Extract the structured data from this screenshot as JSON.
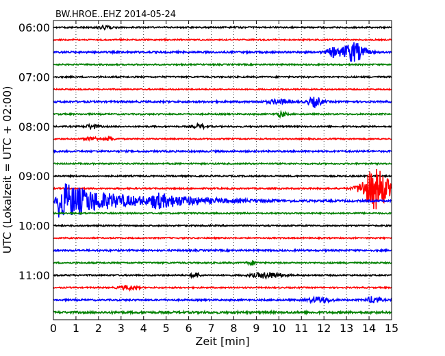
{
  "chart_data": {
    "type": "line",
    "title": "BW.HROE..EHZ 2014-05-24",
    "xlabel": "Zeit  [min]",
    "ylabel": "UTC (Lokalzeit = UTC + 02:00)",
    "xlim": [
      0,
      15
    ],
    "x_ticks": [
      "0",
      "1",
      "2",
      "3",
      "4",
      "5",
      "6",
      "7",
      "8",
      "9",
      "10",
      "11",
      "12",
      "13",
      "14",
      "15"
    ],
    "y_ticks": [
      "06:00",
      "07:00",
      "08:00",
      "09:00",
      "10:00",
      "11:00"
    ],
    "grid": {
      "vertical_dotted": true
    },
    "row_minutes": 15,
    "start_utc": "06:00",
    "colors": [
      "#000000",
      "#ff0000",
      "#0000ff",
      "#008000"
    ],
    "traces": [
      {
        "start": "06:00",
        "noise": 1.0,
        "events": [
          {
            "at": 2.3,
            "width": 0.3,
            "amp": 3
          }
        ]
      },
      {
        "start": "06:15",
        "noise": 0.9,
        "events": []
      },
      {
        "start": "06:30",
        "noise": 1.3,
        "events": [
          {
            "at": 12.4,
            "width": 0.3,
            "amp": 6
          },
          {
            "at": 13.3,
            "width": 0.5,
            "amp": 14
          }
        ]
      },
      {
        "start": "06:45",
        "noise": 1.0,
        "events": []
      },
      {
        "start": "07:00",
        "noise": 1.0,
        "events": []
      },
      {
        "start": "07:15",
        "noise": 0.9,
        "events": []
      },
      {
        "start": "07:30",
        "noise": 1.3,
        "events": [
          {
            "at": 10.0,
            "width": 0.5,
            "amp": 3
          },
          {
            "at": 11.6,
            "width": 0.3,
            "amp": 7
          }
        ]
      },
      {
        "start": "07:45",
        "noise": 1.0,
        "events": [
          {
            "at": 10.1,
            "width": 0.2,
            "amp": 4
          }
        ]
      },
      {
        "start": "08:00",
        "noise": 1.0,
        "events": [
          {
            "at": 1.7,
            "width": 0.3,
            "amp": 3
          },
          {
            "at": 6.5,
            "width": 0.3,
            "amp": 3
          }
        ]
      },
      {
        "start": "08:15",
        "noise": 0.9,
        "events": [
          {
            "at": 1.7,
            "width": 0.3,
            "amp": 3
          },
          {
            "at": 2.5,
            "width": 0.2,
            "amp": 3
          }
        ]
      },
      {
        "start": "08:30",
        "noise": 1.2,
        "events": []
      },
      {
        "start": "08:45",
        "noise": 1.0,
        "events": []
      },
      {
        "start": "09:00",
        "noise": 1.0,
        "events": []
      },
      {
        "start": "09:15",
        "noise": 1.0,
        "events": [
          {
            "at": 14.3,
            "width": 0.6,
            "amp": 30
          }
        ]
      },
      {
        "start": "09:30",
        "noise": 1.3,
        "events": [
          {
            "at": 0.3,
            "width": 5.5,
            "amp": 28,
            "decay": true
          },
          {
            "at": 4.5,
            "width": 4.0,
            "amp": 8,
            "decay": true
          }
        ]
      },
      {
        "start": "09:45",
        "noise": 1.0,
        "events": []
      },
      {
        "start": "10:00",
        "noise": 1.0,
        "events": []
      },
      {
        "start": "10:15",
        "noise": 0.9,
        "events": []
      },
      {
        "start": "10:30",
        "noise": 1.2,
        "events": []
      },
      {
        "start": "10:45",
        "noise": 1.0,
        "events": [
          {
            "at": 8.8,
            "width": 0.2,
            "amp": 3
          }
        ]
      },
      {
        "start": "11:00",
        "noise": 1.0,
        "events": [
          {
            "at": 6.3,
            "width": 0.2,
            "amp": 4
          },
          {
            "at": 9.5,
            "width": 0.7,
            "amp": 4
          }
        ]
      },
      {
        "start": "11:15",
        "noise": 0.9,
        "events": [
          {
            "at": 3.3,
            "width": 0.4,
            "amp": 3
          }
        ]
      },
      {
        "start": "11:30",
        "noise": 1.2,
        "events": [
          {
            "at": 11.8,
            "width": 0.5,
            "amp": 4
          },
          {
            "at": 14.2,
            "width": 0.3,
            "amp": 5
          }
        ]
      },
      {
        "start": "11:45",
        "noise": 1.6,
        "events": []
      }
    ]
  }
}
